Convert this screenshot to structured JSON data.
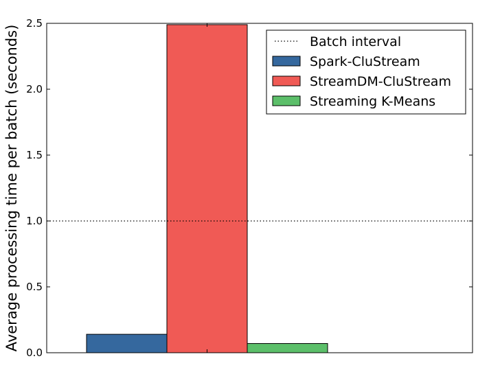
{
  "chart_data": {
    "type": "bar",
    "categories": [
      ""
    ],
    "series": [
      {
        "name": "Spark-CluStream",
        "values": [
          0.14
        ],
        "color": "#35689e"
      },
      {
        "name": "StreamDM-CluStream",
        "values": [
          2.49
        ],
        "color": "#f05a55"
      },
      {
        "name": "Streaming K-Means",
        "values": [
          0.07
        ],
        "color": "#5cbf6a"
      }
    ],
    "reference_line": {
      "name": "Batch interval",
      "y": 1.0,
      "style": "dotted",
      "color": "#000000"
    },
    "title": "",
    "xlabel": "",
    "ylabel": "Average processing time per batch (seconds)",
    "ylim": [
      0,
      2.5
    ],
    "yticks": [
      0.0,
      0.5,
      1.0,
      1.5,
      2.0,
      2.5
    ],
    "ytick_labels": [
      "0.0",
      "0.5",
      "1.0",
      "1.5",
      "2.0",
      "2.5"
    ],
    "grid": false,
    "legend": {
      "placement": "top-right",
      "entries": [
        "Batch interval",
        "Spark-CluStream",
        "StreamDM-CluStream",
        "Streaming K-Means"
      ]
    }
  }
}
